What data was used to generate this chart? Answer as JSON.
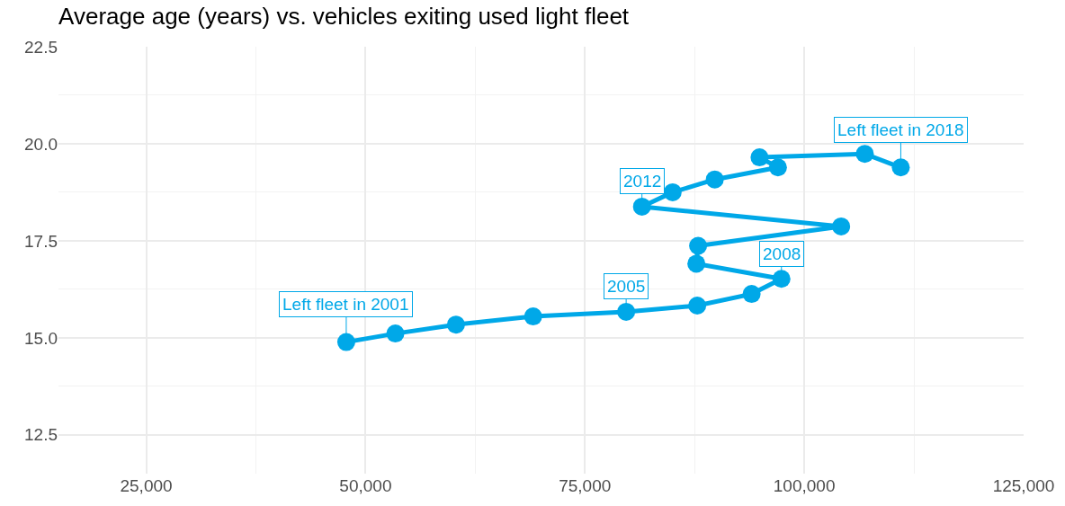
{
  "chart_data": {
    "type": "line",
    "title": "Average age (years) vs. vehicles exiting used light fleet",
    "x": [
      47800,
      53400,
      60300,
      69100,
      79700,
      87800,
      94000,
      97400,
      87700,
      87900,
      104200,
      81500,
      85000,
      89800,
      97000,
      94900,
      106900,
      111000
    ],
    "series": [
      {
        "color": "#00a8e8",
        "values": [
          14.89,
          15.11,
          15.34,
          15.55,
          15.67,
          15.83,
          16.13,
          16.52,
          16.91,
          17.37,
          17.87,
          18.38,
          18.75,
          19.08,
          19.39,
          19.65,
          19.74,
          19.39
        ]
      }
    ],
    "marker": "circle",
    "grid": true,
    "xlim": [
      15000,
      125000
    ],
    "xticks": [
      {
        "value": 25000,
        "label": "25,000"
      },
      {
        "value": 50000,
        "label": "50,000"
      },
      {
        "value": 75000,
        "label": "75,000"
      },
      {
        "value": 100000,
        "label": "100,000"
      },
      {
        "value": 125000,
        "label": "125,000"
      }
    ],
    "ylim": [
      11.5,
      22.5
    ],
    "yticks": [
      {
        "value": 12.5,
        "label": "12.5"
      },
      {
        "value": 15,
        "label": "15.0"
      },
      {
        "value": 17.5,
        "label": "17.5"
      },
      {
        "value": 20,
        "label": "20.0"
      },
      {
        "value": 22.5,
        "label": "22.5"
      }
    ],
    "annotations": [
      {
        "text": "Left fleet in 2001",
        "x": 47800,
        "y": 14.89
      },
      {
        "text": "2005",
        "x": 79700,
        "y": 15.67
      },
      {
        "text": "2008",
        "x": 97400,
        "y": 16.52
      },
      {
        "text": "2012",
        "x": 81500,
        "y": 18.38
      },
      {
        "text": "Left fleet in 2018",
        "x": 111000,
        "y": 19.39
      }
    ]
  }
}
